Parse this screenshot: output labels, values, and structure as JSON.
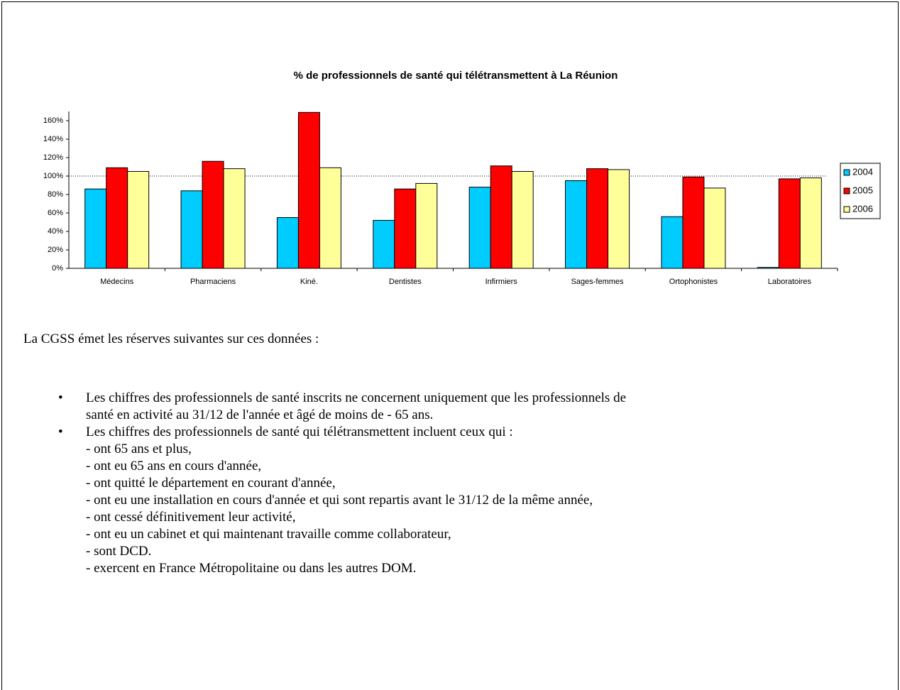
{
  "chart_data": {
    "type": "bar",
    "title": "% de professionnels de santé qui télétransmettent à La Réunion",
    "categories": [
      "Médecins",
      "Pharmaciens",
      "Kiné.",
      "Dentistes",
      "Infirmiers",
      "Sages-femmes",
      "Ortophonistes",
      "Laboratoires"
    ],
    "series": [
      {
        "name": "2004",
        "color": "#00ccff",
        "values": [
          86,
          84,
          55,
          52,
          88,
          95,
          56,
          1
        ]
      },
      {
        "name": "2005",
        "color": "#ff0000",
        "values": [
          109,
          116,
          169,
          86,
          111,
          108,
          99,
          97
        ]
      },
      {
        "name": "2006",
        "color": "#ffff99",
        "values": [
          105,
          108,
          109,
          92,
          105,
          107,
          87,
          98
        ]
      }
    ],
    "ylim": [
      0,
      170
    ],
    "yticks": [
      {
        "value": 0,
        "label": "0%"
      },
      {
        "value": 20,
        "label": "20%"
      },
      {
        "value": 40,
        "label": "40%"
      },
      {
        "value": 60,
        "label": "60%"
      },
      {
        "value": 80,
        "label": "80%"
      },
      {
        "value": 100,
        "label": "100%"
      },
      {
        "value": 120,
        "label": "120%"
      },
      {
        "value": 140,
        "label": "140%"
      },
      {
        "value": 160,
        "label": "160%"
      }
    ],
    "reference_line": 100,
    "legend": "right"
  },
  "intro": "La CGSS émet les réserves suivantes sur ces données :",
  "bullets": [
    {
      "lines": [
        "Les chiffres des professionnels de santé inscrits ne concernent uniquement que les professionnels de",
        "santé en activité au 31/12 de l'année et âgé de moins de - 65 ans."
      ]
    },
    {
      "lines": [
        "Les chiffres des professionnels de santé qui télétransmettent incluent ceux qui :",
        "- ont 65 ans et plus,",
        "- ont eu 65 ans en cours d'année,",
        "- ont quitté le département en courant d'année,",
        "- ont eu une installation en cours d'année et qui sont repartis avant le 31/12 de la même année,",
        "- ont cessé définitivement leur activité,",
        "- ont eu un cabinet et qui maintenant travaille comme collaborateur,",
        "- sont DCD.",
        "- exercent en France Métropolitaine ou dans les autres DOM."
      ]
    }
  ]
}
